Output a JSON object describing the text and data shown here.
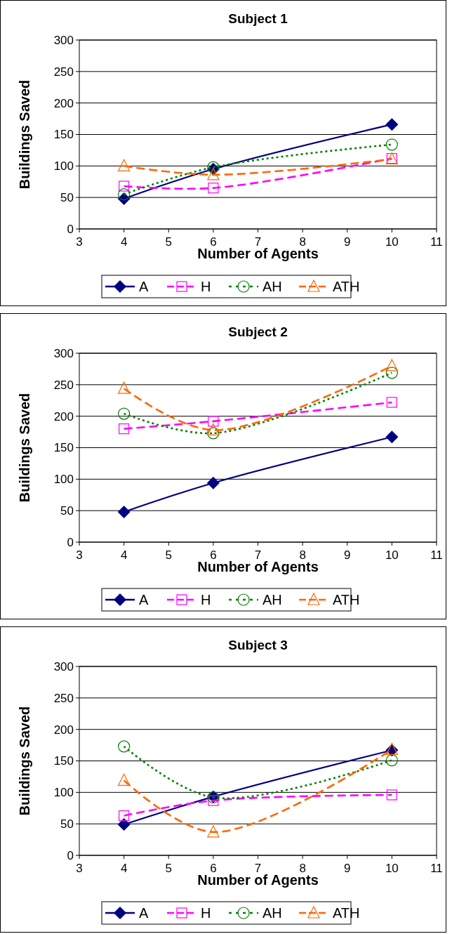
{
  "chart_data": [
    {
      "type": "line",
      "title": "Subject 1",
      "xlabel": "Number of Agents",
      "ylabel": "Buildings Saved",
      "x": [
        4,
        6,
        10
      ],
      "xlim": [
        3,
        11
      ],
      "xticks": [
        3,
        4,
        5,
        6,
        7,
        8,
        9,
        10,
        11
      ],
      "ylim": [
        0,
        300
      ],
      "yticks": [
        0,
        50,
        100,
        150,
        200,
        250,
        300
      ],
      "grid": "y",
      "legend": "bottom",
      "series": [
        {
          "name": "A",
          "color": "#000080",
          "values": [
            48,
            95,
            166
          ],
          "marker": "diamond",
          "line_style": "solid"
        },
        {
          "name": "H",
          "color": "#ff00ff",
          "values": [
            68,
            65,
            112
          ],
          "marker": "square",
          "line_style": "dashed"
        },
        {
          "name": "AH",
          "color": "#008000",
          "values": [
            55,
            98,
            134
          ],
          "marker": "circle",
          "line_style": "dotted"
        },
        {
          "name": "ATH",
          "color": "#ff6600",
          "values": [
            100,
            86,
            111
          ],
          "marker": "triangle",
          "line_style": "dashed"
        }
      ]
    },
    {
      "type": "line",
      "title": "Subject 2",
      "xlabel": "Number of Agents",
      "ylabel": "Buildings Saved",
      "x": [
        4,
        6,
        10
      ],
      "xlim": [
        3,
        11
      ],
      "xticks": [
        3,
        4,
        5,
        6,
        7,
        8,
        9,
        10,
        11
      ],
      "ylim": [
        0,
        300
      ],
      "yticks": [
        0,
        50,
        100,
        150,
        200,
        250,
        300
      ],
      "grid": "y",
      "legend": "bottom",
      "series": [
        {
          "name": "A",
          "color": "#000080",
          "values": [
            48,
            94,
            167
          ],
          "marker": "diamond",
          "line_style": "solid"
        },
        {
          "name": "H",
          "color": "#ff00ff",
          "values": [
            180,
            192,
            222
          ],
          "marker": "square",
          "line_style": "dashed"
        },
        {
          "name": "AH",
          "color": "#008000",
          "values": [
            204,
            173,
            269
          ],
          "marker": "circle",
          "line_style": "dotted"
        },
        {
          "name": "ATH",
          "color": "#ff6600",
          "values": [
            244,
            178,
            280
          ],
          "marker": "triangle",
          "line_style": "dashed"
        }
      ]
    },
    {
      "type": "line",
      "title": "Subject 3",
      "xlabel": "Number of Agents",
      "ylabel": "Buildings Saved",
      "x": [
        4,
        6,
        10
      ],
      "xlim": [
        3,
        11
      ],
      "xticks": [
        3,
        4,
        5,
        6,
        7,
        8,
        9,
        10,
        11
      ],
      "ylim": [
        0,
        300
      ],
      "yticks": [
        0,
        50,
        100,
        150,
        200,
        250,
        300
      ],
      "grid": "y",
      "legend": "bottom",
      "series": [
        {
          "name": "A",
          "color": "#000080",
          "values": [
            49,
            93,
            167
          ],
          "marker": "diamond",
          "line_style": "solid"
        },
        {
          "name": "H",
          "color": "#ff00ff",
          "values": [
            63,
            87,
            96
          ],
          "marker": "square",
          "line_style": "dashed"
        },
        {
          "name": "AH",
          "color": "#008000",
          "values": [
            173,
            92,
            151
          ],
          "marker": "circle",
          "line_style": "dotted"
        },
        {
          "name": "ATH",
          "color": "#ff6600",
          "values": [
            119,
            37,
            168
          ],
          "marker": "triangle",
          "line_style": "dashed"
        }
      ]
    }
  ]
}
